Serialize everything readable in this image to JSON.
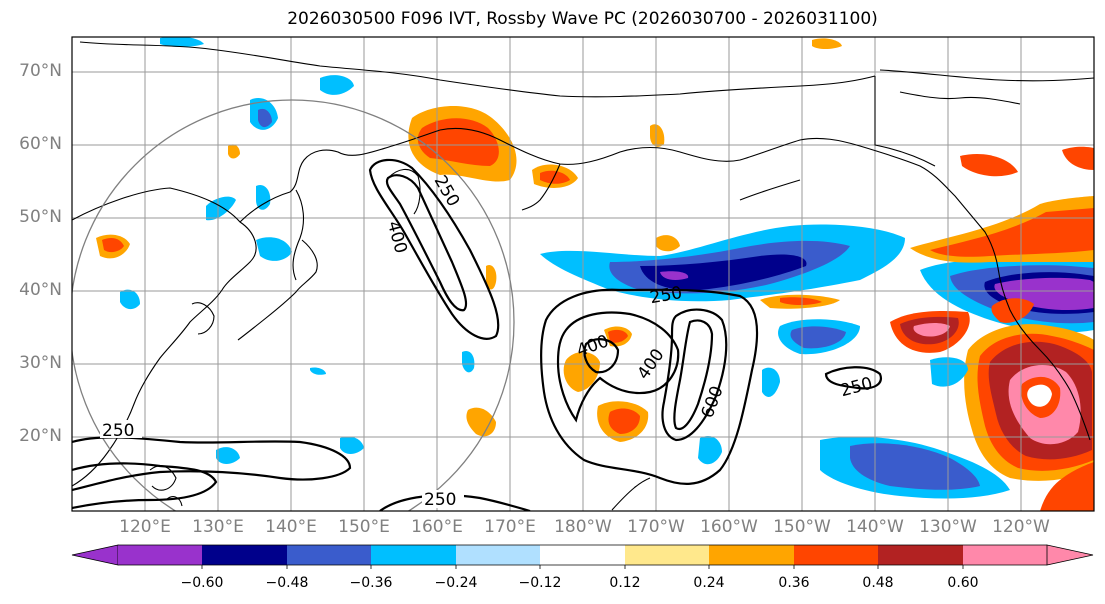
{
  "title": "2026030500 F096 IVT, Rossby Wave PC (2026030700 - 2026031100)",
  "lat_labels": [
    "70°N",
    "60°N",
    "50°N",
    "40°N",
    "30°N",
    "20°N"
  ],
  "lon_labels": [
    "120°E",
    "130°E",
    "140°E",
    "150°E",
    "160°E",
    "170°E",
    "180°W",
    "170°W",
    "160°W",
    "150°W",
    "140°W",
    "130°W",
    "120°W"
  ],
  "contour_labels": [
    "250",
    "400",
    "250",
    "400",
    "400",
    "600",
    "250",
    "250",
    "250"
  ],
  "colorbar": {
    "colors": [
      "#9932cc",
      "#00008b",
      "#3a5ccc",
      "#00bfff",
      "#b0e0ff",
      "#ffffff",
      "#ffe88c",
      "#ffa500",
      "#ff4500",
      "#b22222",
      "#ff88aa"
    ],
    "tick_labels": [
      "−0.60",
      "−0.48",
      "−0.36",
      "−0.24",
      "−0.12",
      "0.12",
      "0.24",
      "0.36",
      "0.48",
      "0.60"
    ]
  }
}
